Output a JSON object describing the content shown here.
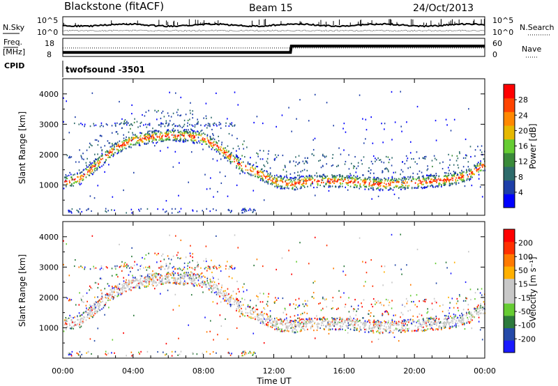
{
  "header": {
    "station": "Blackstone (fitACF)",
    "beam": "Beam 15",
    "date": "24/Oct/2013"
  },
  "top_panels": {
    "nsky_label": "N.Sky",
    "nsearch_label": "N.Search",
    "nsky_ticks": [
      "10^5",
      "10^0"
    ],
    "nsearch_ticks": [
      "10^5",
      "10^0"
    ],
    "freq_label": "Freq.",
    "freq_unit": "[MHz]",
    "freq_ticks": [
      "18",
      "8"
    ],
    "nave_label": "Nave",
    "nave_ticks": [
      "60",
      "0"
    ],
    "cpid_label": "CPID",
    "cpid_text": "twofsound -3501",
    "freq_series": [
      {
        "t_h": 0,
        "mhz": 11
      },
      {
        "t_h": 12.95,
        "mhz": 11
      },
      {
        "t_h": 13.0,
        "mhz": 14.5
      },
      {
        "t_h": 24,
        "mhz": 14.5
      }
    ],
    "nave_series": [
      {
        "t_h": 0,
        "nave": 28
      },
      {
        "t_h": 24,
        "nave": 28
      }
    ]
  },
  "colors": {
    "power_scale": [
      "#0000ff",
      "#1e3fa8",
      "#2e6b6b",
      "#3a8a3a",
      "#66cc33",
      "#e6b800",
      "#ff8800",
      "#ff4400",
      "#ff0000"
    ],
    "velocity_scale": [
      "#1a1aff",
      "#254aa8",
      "#2c7a3c",
      "#66cc33",
      "#c8c8c8",
      "#c8c8c8",
      "#ffb000",
      "#ff7a00",
      "#ff3000",
      "#ff0000"
    ]
  },
  "chart_data": [
    {
      "type": "heatmap",
      "name": "power-panel",
      "title": "",
      "xlabel": "Time UT",
      "ylabel": "Slant Range [km]",
      "x_ticks": [
        "00:00",
        "04:00",
        "08:00",
        "12:00",
        "16:00",
        "20:00",
        "00:00"
      ],
      "xlim_hours": [
        0,
        24
      ],
      "ylim_km": [
        0,
        4500
      ],
      "y_ticks": [
        1000,
        2000,
        3000,
        4000
      ],
      "colorbar": {
        "label": "Power [dB]",
        "ticks": [
          "28",
          "24",
          "20",
          "16",
          "12",
          "8",
          "4"
        ],
        "range": [
          0,
          30
        ]
      },
      "main_echo_band": [
        {
          "t": 0,
          "r": 1100
        },
        {
          "t": 1,
          "r": 1250
        },
        {
          "t": 2,
          "r": 1750
        },
        {
          "t": 3,
          "r": 2250
        },
        {
          "t": 4,
          "r": 2500
        },
        {
          "t": 5,
          "r": 2600
        },
        {
          "t": 6,
          "r": 2650
        },
        {
          "t": 7,
          "r": 2650
        },
        {
          "t": 8,
          "r": 2550
        },
        {
          "t": 9,
          "r": 2200
        },
        {
          "t": 10,
          "r": 1700
        },
        {
          "t": 11,
          "r": 1450
        },
        {
          "t": 12,
          "r": 1150
        },
        {
          "t": 13,
          "r": 1050
        },
        {
          "t": 14,
          "r": 1150
        },
        {
          "t": 16,
          "r": 1150
        },
        {
          "t": 18,
          "r": 1050
        },
        {
          "t": 20,
          "r": 1100
        },
        {
          "t": 22,
          "r": 1200
        },
        {
          "t": 23,
          "r": 1350
        },
        {
          "t": 24,
          "r": 1700
        }
      ],
      "peak_power_db": 28
    },
    {
      "type": "heatmap",
      "name": "velocity-panel",
      "title": "",
      "xlabel": "Time UT",
      "ylabel": "Slant Range [km]",
      "x_ticks": [
        "00:00",
        "04:00",
        "08:00",
        "12:00",
        "16:00",
        "20:00",
        "00:00"
      ],
      "xlim_hours": [
        0,
        24
      ],
      "ylim_km": [
        0,
        4500
      ],
      "y_ticks": [
        1000,
        2000,
        3000,
        4000
      ],
      "colorbar": {
        "label": "Velocity [m s⁻¹]",
        "ticks": [
          "200",
          "100",
          "50",
          "15",
          "-15",
          "-50",
          "-100",
          "-200"
        ],
        "range": [
          -250,
          250
        ]
      },
      "main_echo_band": "same as power-panel",
      "dominant_velocity_ms": 0
    }
  ]
}
